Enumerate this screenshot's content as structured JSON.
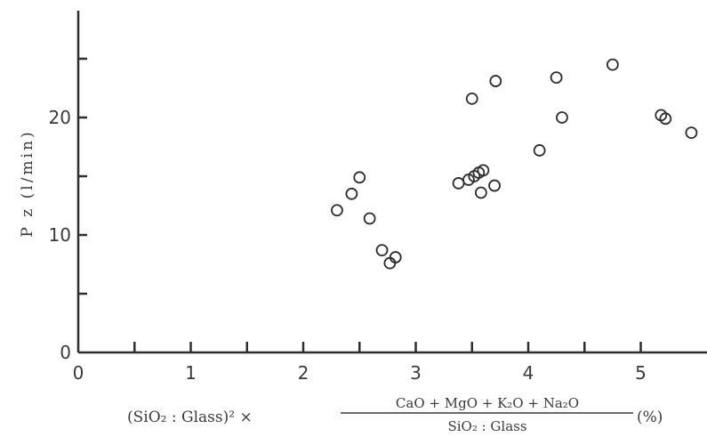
{
  "chart_data": {
    "type": "scatter",
    "ylabel": "P z (l/min)",
    "xlabel": {
      "left": "(SiO₂ : Glass)² ×",
      "numerator": "CaO + MgO + K₂O + Na₂O",
      "denominator": "SiO₂ : Glass",
      "unit": "(%)"
    },
    "xlim": [
      0,
      5.5
    ],
    "ylim": [
      0,
      29
    ],
    "x_ticks": [
      0,
      1,
      2,
      3,
      4,
      5
    ],
    "x_minor_ticks": [
      0.5,
      1.5,
      2.5,
      3.5,
      4.5
    ],
    "y_ticks_labeled": [
      0,
      10,
      20
    ],
    "y_ticks_unlabeled": [
      5,
      15,
      25
    ],
    "grid": false,
    "points": [
      {
        "x": 2.3,
        "y": 12.1
      },
      {
        "x": 2.43,
        "y": 13.5
      },
      {
        "x": 2.5,
        "y": 14.9
      },
      {
        "x": 2.59,
        "y": 11.4
      },
      {
        "x": 2.7,
        "y": 8.7
      },
      {
        "x": 2.77,
        "y": 7.6
      },
      {
        "x": 2.82,
        "y": 8.1
      },
      {
        "x": 3.38,
        "y": 14.4
      },
      {
        "x": 3.47,
        "y": 14.7
      },
      {
        "x": 3.52,
        "y": 15.0
      },
      {
        "x": 3.56,
        "y": 15.3
      },
      {
        "x": 3.6,
        "y": 15.5
      },
      {
        "x": 3.58,
        "y": 13.6
      },
      {
        "x": 3.7,
        "y": 14.2
      },
      {
        "x": 3.5,
        "y": 21.6
      },
      {
        "x": 3.71,
        "y": 23.1
      },
      {
        "x": 4.1,
        "y": 17.2
      },
      {
        "x": 4.25,
        "y": 23.4
      },
      {
        "x": 4.3,
        "y": 20.0
      },
      {
        "x": 4.75,
        "y": 24.5
      },
      {
        "x": 5.18,
        "y": 20.2
      },
      {
        "x": 5.22,
        "y": 19.9
      },
      {
        "x": 5.45,
        "y": 18.7
      }
    ]
  }
}
